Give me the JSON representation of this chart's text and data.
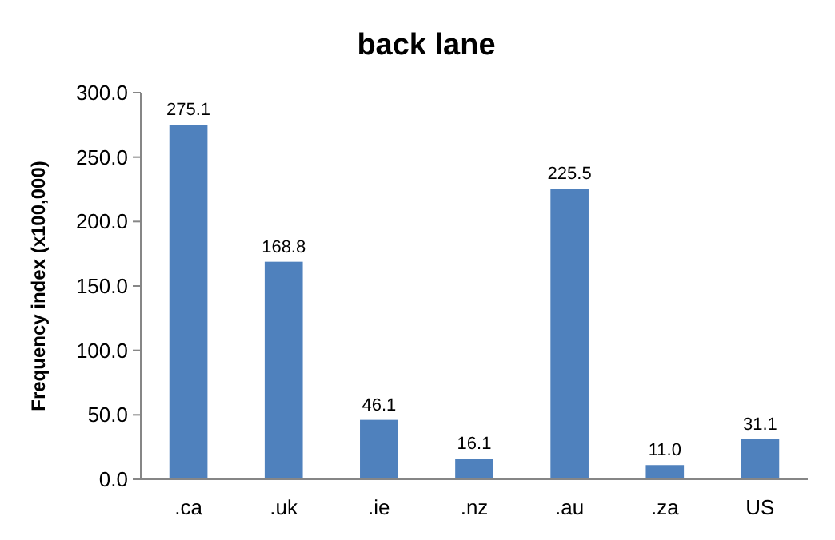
{
  "chart_data": {
    "type": "bar",
    "title": "back lane",
    "ylabel": "Frequency index (x100,000)",
    "categories": [
      ".ca",
      ".uk",
      ".ie",
      ".nz",
      ".au",
      ".za",
      "US"
    ],
    "values": [
      275.1,
      168.8,
      46.1,
      16.1,
      225.5,
      11.0,
      31.1
    ],
    "value_labels": [
      "275.1",
      "168.8",
      "46.1",
      "16.1",
      "225.5",
      "11.0",
      "31.1"
    ],
    "color": "#4f81bd",
    "ylim": [
      0,
      300
    ],
    "yticks": [
      {
        "value": 0,
        "label": "0.0"
      },
      {
        "value": 50,
        "label": "50.0"
      },
      {
        "value": 100,
        "label": "100.0"
      },
      {
        "value": 150,
        "label": "150.0"
      },
      {
        "value": 200,
        "label": "200.0"
      },
      {
        "value": 250,
        "label": "250.0"
      },
      {
        "value": 300,
        "label": "300.0"
      }
    ],
    "grid": false
  }
}
